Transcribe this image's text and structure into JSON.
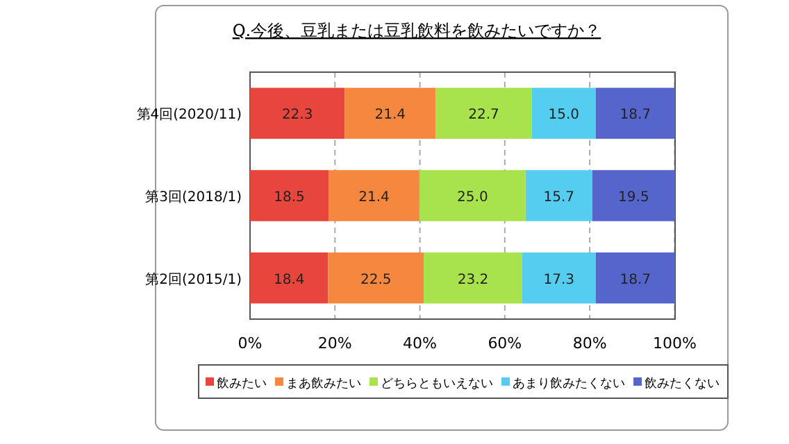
{
  "chart_data": {
    "type": "bar",
    "title": "Q.今後、豆乳または豆乳飲料を飲みたいですか？",
    "orientation": "horizontal",
    "stacked": true,
    "categories": [
      "第4回(2020/11)",
      "第3回(2018/1)",
      "第2回(2015/1)"
    ],
    "series": [
      {
        "name": "飲みたい",
        "color": "#e8463c",
        "values": [
          22.3,
          18.5,
          18.4
        ],
        "value_labels": [
          "22.3",
          "18.5",
          "18.4"
        ]
      },
      {
        "name": "まあ飲みたい",
        "color": "#f5883e",
        "values": [
          21.4,
          21.4,
          22.5
        ],
        "value_labels": [
          "21.4",
          "21.4",
          "22.5"
        ]
      },
      {
        "name": "どちらともいえない",
        "color": "#a8e24c",
        "values": [
          22.7,
          25.0,
          23.2
        ],
        "value_labels": [
          "22.7",
          "25.0",
          "23.2"
        ]
      },
      {
        "name": "あまり飲みたくない",
        "color": "#55cdf0",
        "values": [
          15.0,
          15.7,
          17.3
        ],
        "value_labels": [
          "15.0",
          "15.7",
          "17.3"
        ]
      },
      {
        "name": "飲みたくない",
        "color": "#5565cc",
        "values": [
          18.7,
          19.5,
          18.7
        ],
        "value_labels": [
          "18.7",
          "19.5",
          "18.7"
        ]
      }
    ],
    "xlim": [
      0,
      100.1
    ],
    "xticks": [
      {
        "value": 0,
        "label": "0%"
      },
      {
        "value": 20,
        "label": "20%"
      },
      {
        "value": 40,
        "label": "40%"
      },
      {
        "value": 60,
        "label": "60%"
      },
      {
        "value": 80,
        "label": "80%"
      },
      {
        "value": 100,
        "label": "100%"
      }
    ],
    "grid": "x",
    "legend": "bottom"
  }
}
